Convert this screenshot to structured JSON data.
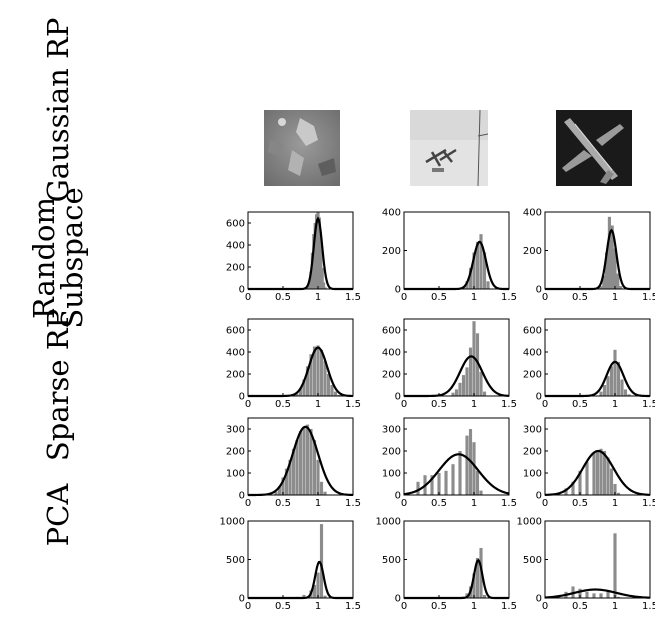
{
  "row_labels": [
    {
      "lines": [
        "Gaussian RP"
      ]
    },
    {
      "lines": [
        "Random",
        "Subspace"
      ]
    },
    {
      "lines": [
        "Sparse RP"
      ]
    },
    {
      "lines": [
        "PCA"
      ]
    }
  ],
  "colors": {
    "histogram": "#8c8c8c",
    "fit_curve": "#000000",
    "axes": "#000000"
  },
  "images": [
    {
      "name": "terrain-image",
      "description_icon": "terrain-photo"
    },
    {
      "name": "airport-image",
      "description_icon": "aircraft-on-runway-photo"
    },
    {
      "name": "airplane-image",
      "description_icon": "airplane-photo"
    }
  ],
  "chart_data": [
    {
      "type": "bar",
      "row": 0,
      "col": 0,
      "xlim": [
        0,
        1.5
      ],
      "ylim": [
        0,
        700
      ],
      "xticks": [
        "0",
        "0.5",
        "1",
        "1.5"
      ],
      "yticks": [
        "0",
        "200",
        "400",
        "600"
      ],
      "fit": {
        "type": "gaussian",
        "mean": 1.0,
        "sd": 0.06,
        "peak": 640
      },
      "hist": {
        "x": [
          0.86,
          0.88,
          0.9,
          0.92,
          0.94,
          0.96,
          0.98,
          1.0,
          1.02,
          1.04,
          1.06,
          1.08,
          1.1
        ],
        "values": [
          15,
          60,
          160,
          330,
          500,
          600,
          680,
          720,
          650,
          420,
          190,
          60,
          15
        ]
      }
    },
    {
      "type": "bar",
      "row": 0,
      "col": 1,
      "xlim": [
        0,
        1.5
      ],
      "ylim": [
        0,
        400
      ],
      "xticks": [
        "0",
        "0.5",
        "1",
        "1.5"
      ],
      "yticks": [
        "0",
        "200",
        "400"
      ],
      "fit": {
        "type": "gaussian",
        "mean": 1.08,
        "sd": 0.09,
        "peak": 245
      },
      "hist": {
        "x": [
          0.85,
          0.9,
          0.95,
          1.0,
          1.05,
          1.1,
          1.15,
          1.2
        ],
        "values": [
          8,
          40,
          110,
          190,
          245,
          285,
          190,
          40
        ]
      }
    },
    {
      "type": "bar",
      "row": 0,
      "col": 2,
      "xlim": [
        0,
        1.5
      ],
      "ylim": [
        0,
        400
      ],
      "xticks": [
        "0",
        "0.5",
        "1",
        "1.5"
      ],
      "yticks": [
        "0",
        "200",
        "400"
      ],
      "fit": {
        "type": "gaussian",
        "mean": 0.95,
        "sd": 0.07,
        "peak": 305
      },
      "hist": {
        "x": [
          0.8,
          0.84,
          0.88,
          0.92,
          0.96,
          1.0,
          1.04,
          1.08
        ],
        "values": [
          15,
          70,
          190,
          375,
          330,
          210,
          80,
          15
        ]
      }
    },
    {
      "type": "bar",
      "row": 1,
      "col": 0,
      "xlim": [
        0,
        1.5
      ],
      "ylim": [
        0,
        700
      ],
      "xticks": [
        "0",
        "0.5",
        "1",
        "1.5"
      ],
      "yticks": [
        "0",
        "200",
        "400",
        "600"
      ],
      "fit": {
        "type": "gaussian",
        "mean": 1.0,
        "sd": 0.13,
        "peak": 440
      },
      "hist": {
        "x": [
          0.7,
          0.75,
          0.8,
          0.85,
          0.9,
          0.95,
          1.0,
          1.05,
          1.1,
          1.15,
          1.2,
          1.25,
          1.3
        ],
        "values": [
          20,
          70,
          150,
          270,
          380,
          450,
          460,
          420,
          320,
          200,
          100,
          40,
          10
        ]
      }
    },
    {
      "type": "bar",
      "row": 1,
      "col": 1,
      "xlim": [
        0,
        1.5
      ],
      "ylim": [
        0,
        700
      ],
      "xticks": [
        "0",
        "0.5",
        "1",
        "1.5"
      ],
      "yticks": [
        "0",
        "200",
        "400",
        "600"
      ],
      "fit": {
        "type": "gaussian",
        "mean": 0.96,
        "sd": 0.16,
        "peak": 360
      },
      "hist": {
        "x": [
          0.7,
          0.75,
          0.8,
          0.85,
          0.9,
          0.95,
          1.0,
          1.05,
          1.1,
          1.15
        ],
        "values": [
          30,
          60,
          120,
          190,
          260,
          440,
          680,
          570,
          220,
          40
        ]
      }
    },
    {
      "type": "bar",
      "row": 1,
      "col": 2,
      "xlim": [
        0,
        1.5
      ],
      "ylim": [
        0,
        700
      ],
      "xticks": [
        "0",
        "0.5",
        "1",
        "1.5"
      ],
      "yticks": [
        "0",
        "200",
        "400",
        "600"
      ],
      "fit": {
        "type": "gaussian",
        "mean": 1.0,
        "sd": 0.12,
        "peak": 310
      },
      "hist": {
        "x": [
          0.8,
          0.85,
          0.9,
          0.95,
          1.0,
          1.05,
          1.1,
          1.15,
          1.2
        ],
        "values": [
          40,
          100,
          180,
          270,
          420,
          310,
          150,
          60,
          15
        ]
      }
    },
    {
      "type": "bar",
      "row": 2,
      "col": 0,
      "xlim": [
        0,
        1.5
      ],
      "ylim": [
        0,
        350
      ],
      "xticks": [
        "0",
        "0.5",
        "1",
        "1.5"
      ],
      "yticks": [
        "0",
        "100",
        "200",
        "300"
      ],
      "fit": {
        "type": "gaussian",
        "mean": 0.82,
        "sd": 0.18,
        "peak": 310
      },
      "hist": {
        "x": [
          0.4,
          0.45,
          0.5,
          0.55,
          0.6,
          0.65,
          0.7,
          0.75,
          0.8,
          0.85,
          0.9,
          0.95,
          1.0,
          1.05,
          1.1
        ],
        "values": [
          15,
          40,
          80,
          120,
          160,
          210,
          250,
          290,
          310,
          320,
          300,
          250,
          160,
          60,
          15
        ]
      }
    },
    {
      "type": "bar",
      "row": 2,
      "col": 1,
      "xlim": [
        0,
        1.5
      ],
      "ylim": [
        0,
        350
      ],
      "xticks": [
        "0",
        "0.5",
        "1",
        "1.5"
      ],
      "yticks": [
        "0",
        "100",
        "200",
        "300"
      ],
      "fit": {
        "type": "gaussian",
        "mean": 0.78,
        "sd": 0.28,
        "peak": 185
      },
      "hist": {
        "x": [
          0.2,
          0.3,
          0.4,
          0.5,
          0.6,
          0.7,
          0.8,
          0.9,
          0.95,
          1.0,
          1.05,
          1.1
        ],
        "values": [
          60,
          90,
          90,
          100,
          110,
          140,
          200,
          270,
          300,
          240,
          110,
          20
        ]
      }
    },
    {
      "type": "bar",
      "row": 2,
      "col": 2,
      "xlim": [
        0,
        1.5
      ],
      "ylim": [
        0,
        350
      ],
      "xticks": [
        "0",
        "0.5",
        "1",
        "1.5"
      ],
      "yticks": [
        "0",
        "100",
        "200",
        "300"
      ],
      "fit": {
        "type": "gaussian",
        "mean": 0.76,
        "sd": 0.22,
        "peak": 200
      },
      "hist": {
        "x": [
          0.2,
          0.3,
          0.4,
          0.5,
          0.6,
          0.7,
          0.75,
          0.8,
          0.85,
          0.9,
          0.95,
          1.0,
          1.05
        ],
        "values": [
          10,
          30,
          60,
          110,
          150,
          190,
          200,
          210,
          200,
          170,
          120,
          50,
          10
        ]
      }
    },
    {
      "type": "bar",
      "row": 3,
      "col": 0,
      "xlim": [
        0,
        1.5
      ],
      "ylim": [
        0,
        1000
      ],
      "xticks": [
        "0",
        "0.5",
        "1",
        "1.5"
      ],
      "yticks": [
        "0",
        "500",
        "1000"
      ],
      "fit": {
        "type": "gaussian",
        "mean": 1.02,
        "sd": 0.06,
        "peak": 470
      },
      "hist": {
        "x": [
          0.7,
          0.8,
          0.9,
          0.95,
          1.0,
          1.05,
          1.1
        ],
        "values": [
          15,
          40,
          100,
          170,
          330,
          960,
          30
        ]
      }
    },
    {
      "type": "bar",
      "row": 3,
      "col": 1,
      "xlim": [
        0,
        1.5
      ],
      "ylim": [
        0,
        1000
      ],
      "xticks": [
        "0",
        "0.5",
        "1",
        "1.5"
      ],
      "yticks": [
        "0",
        "500",
        "1000"
      ],
      "fit": {
        "type": "gaussian",
        "mean": 1.06,
        "sd": 0.06,
        "peak": 490
      },
      "hist": {
        "x": [
          0.85,
          0.9,
          0.95,
          1.0,
          1.05,
          1.1,
          1.15
        ],
        "values": [
          20,
          60,
          150,
          320,
          520,
          650,
          40
        ]
      }
    },
    {
      "type": "bar",
      "row": 3,
      "col": 2,
      "xlim": [
        0,
        1.5
      ],
      "ylim": [
        0,
        1000
      ],
      "xticks": [
        "0",
        "0.5",
        "1",
        "1.5"
      ],
      "yticks": [
        "0",
        "500",
        "1000"
      ],
      "fit": {
        "type": "gaussian",
        "mean": 0.72,
        "sd": 0.3,
        "peak": 110
      },
      "hist": {
        "x": [
          0.2,
          0.3,
          0.4,
          0.5,
          0.6,
          0.7,
          0.8,
          0.9,
          1.0,
          1.05
        ],
        "values": [
          20,
          80,
          150,
          120,
          80,
          60,
          60,
          90,
          840,
          15
        ]
      }
    }
  ]
}
